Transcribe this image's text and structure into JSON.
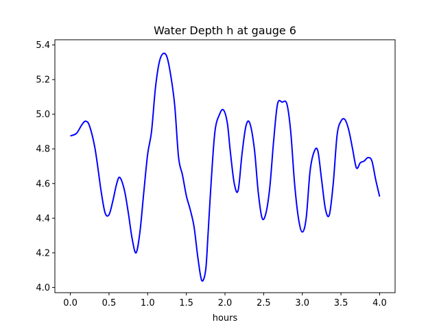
{
  "chart_data": {
    "type": "line",
    "title": "Water Depth h at gauge 6",
    "xlabel": "hours",
    "ylabel": "",
    "xlim": [
      -0.2,
      4.2
    ],
    "ylim": [
      3.97,
      5.43
    ],
    "xticks": [
      0.0,
      0.5,
      1.0,
      1.5,
      2.0,
      2.5,
      3.0,
      3.5,
      4.0
    ],
    "xtick_labels": [
      "0.0",
      "0.5",
      "1.0",
      "1.5",
      "2.0",
      "2.5",
      "3.0",
      "3.5",
      "4.0"
    ],
    "yticks": [
      4.0,
      4.2,
      4.4,
      4.6,
      4.8,
      5.0,
      5.2,
      5.4
    ],
    "ytick_labels": [
      "4.0",
      "4.2",
      "4.4",
      "4.6",
      "4.8",
      "5.0",
      "5.2",
      "5.4"
    ],
    "grid": false,
    "series": [
      {
        "color": "#0000ff",
        "x": [
          0.0,
          0.08,
          0.15,
          0.2,
          0.25,
          0.32,
          0.4,
          0.45,
          0.5,
          0.55,
          0.6,
          0.64,
          0.7,
          0.75,
          0.8,
          0.85,
          0.9,
          0.95,
          1.0,
          1.05,
          1.1,
          1.15,
          1.2,
          1.25,
          1.3,
          1.35,
          1.4,
          1.45,
          1.5,
          1.55,
          1.6,
          1.65,
          1.7,
          1.75,
          1.78,
          1.82,
          1.87,
          1.93,
          1.98,
          2.03,
          2.07,
          2.12,
          2.17,
          2.22,
          2.27,
          2.32,
          2.38,
          2.43,
          2.48,
          2.53,
          2.58,
          2.63,
          2.68,
          2.74,
          2.8,
          2.85,
          2.9,
          2.95,
          3.0,
          3.05,
          3.1,
          3.15,
          3.2,
          3.25,
          3.3,
          3.35,
          3.4,
          3.45,
          3.5,
          3.55,
          3.6,
          3.65,
          3.7,
          3.75,
          3.8,
          3.85,
          3.9,
          3.95,
          4.0
        ],
        "y": [
          4.875,
          4.89,
          4.94,
          4.96,
          4.93,
          4.8,
          4.55,
          4.43,
          4.42,
          4.5,
          4.6,
          4.635,
          4.56,
          4.43,
          4.28,
          4.2,
          4.32,
          4.55,
          4.77,
          4.9,
          5.15,
          5.3,
          5.35,
          5.33,
          5.22,
          5.05,
          4.75,
          4.65,
          4.53,
          4.45,
          4.35,
          4.17,
          4.04,
          4.1,
          4.3,
          4.6,
          4.9,
          5.0,
          5.025,
          4.95,
          4.78,
          4.6,
          4.56,
          4.77,
          4.93,
          4.95,
          4.8,
          4.55,
          4.4,
          4.43,
          4.58,
          4.85,
          5.06,
          5.07,
          5.06,
          4.9,
          4.6,
          4.4,
          4.32,
          4.4,
          4.67,
          4.78,
          4.79,
          4.62,
          4.45,
          4.42,
          4.6,
          4.88,
          4.96,
          4.97,
          4.91,
          4.8,
          4.69,
          4.72,
          4.73,
          4.75,
          4.73,
          4.62,
          4.525
        ]
      }
    ]
  }
}
